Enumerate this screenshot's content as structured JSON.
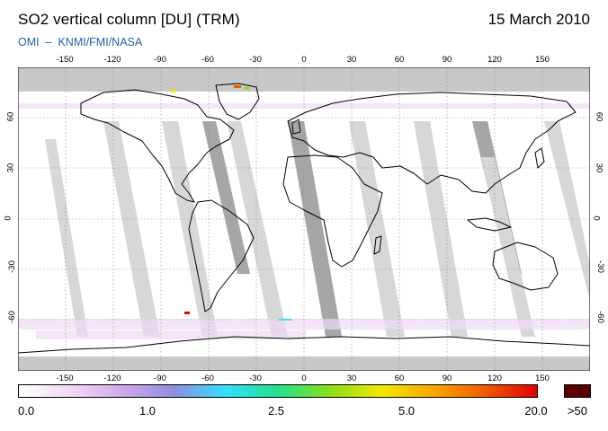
{
  "header": {
    "title": "SO2 vertical column [DU] (TRM)",
    "date": "15 March 2010",
    "subtitle": "OMI  –  KNMI/FMI/NASA"
  },
  "map": {
    "lon_ticks": [
      -150,
      -120,
      -90,
      -60,
      -30,
      0,
      30,
      60,
      90,
      120,
      150
    ],
    "lat_ticks": [
      60,
      30,
      0,
      -30,
      -60
    ],
    "lon_labels": [
      "-150",
      "-120",
      "-90",
      "-60",
      "-30",
      "0",
      "30",
      "60",
      "90",
      "120",
      "150"
    ],
    "lat_labels": [
      "60",
      "30",
      "0",
      "-30",
      "-60"
    ],
    "lon_range": [
      -180,
      180
    ],
    "lat_range": [
      -90,
      90
    ]
  },
  "colorbar": {
    "labels": [
      "0.0",
      "1.0",
      "2.5",
      "5.0",
      "20.0"
    ],
    "over_label": ">50",
    "colors": [
      "#ffffff",
      "#f3d9f5",
      "#cfa8e8",
      "#8f8ee0",
      "#33e0ff",
      "#22e08a",
      "#8ae01a",
      "#f4e800",
      "#f7a800",
      "#f25a00",
      "#e00000"
    ],
    "over_color": "#5a0000"
  },
  "colors": {
    "background": "#ffffff",
    "nodata_gray": "#c8c8c8",
    "swath_gray": "#d7d7d7",
    "swath_dark": "#a6a6a6",
    "coast": "#000000",
    "subtitle_blue": "#1f5fa6"
  }
}
